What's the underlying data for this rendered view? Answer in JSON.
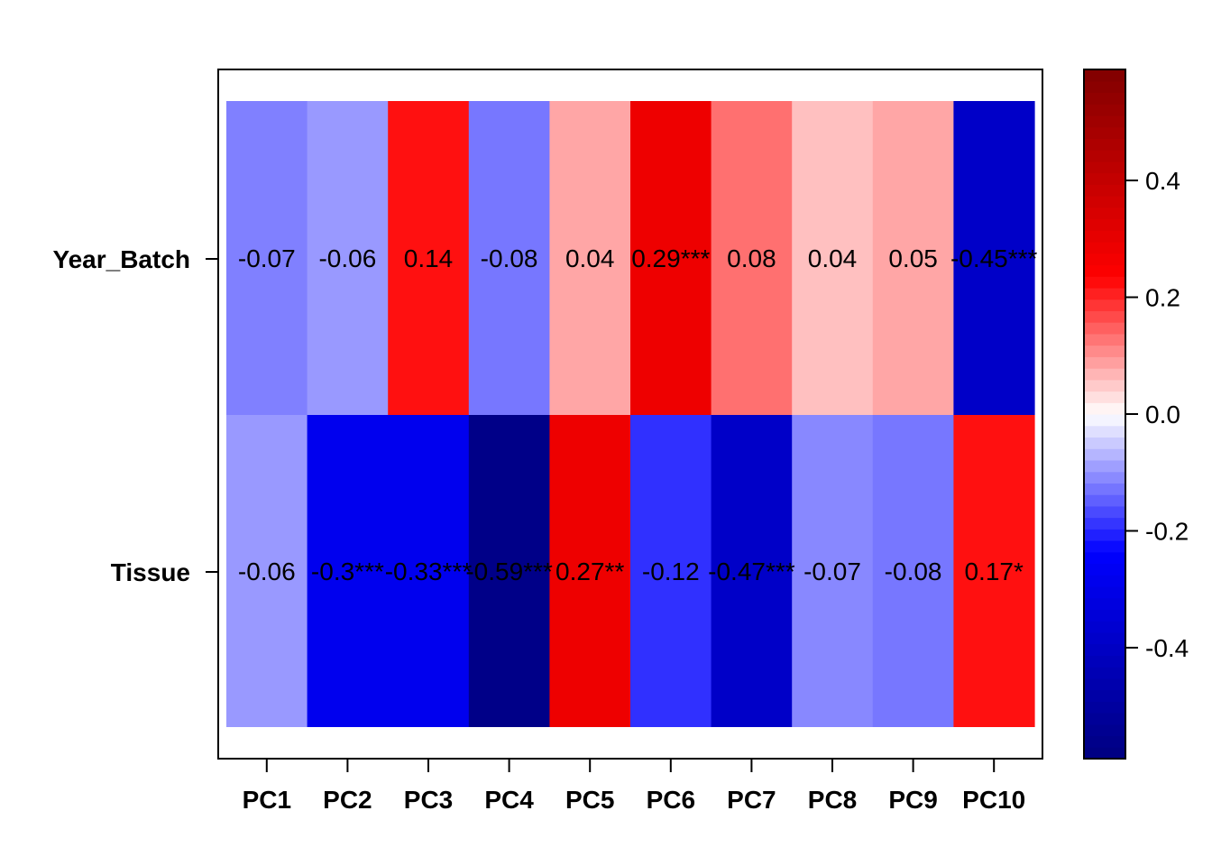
{
  "chart_data": {
    "type": "heatmap",
    "title": "",
    "rows": [
      "Year_Batch",
      "Tissue"
    ],
    "columns": [
      "PC1",
      "PC2",
      "PC3",
      "PC4",
      "PC5",
      "PC6",
      "PC7",
      "PC8",
      "PC9",
      "PC10"
    ],
    "values": [
      [
        -0.07,
        -0.06,
        0.14,
        -0.08,
        0.04,
        0.29,
        0.08,
        0.04,
        0.05,
        -0.45
      ],
      [
        -0.06,
        -0.3,
        -0.33,
        -0.59,
        0.27,
        -0.12,
        -0.47,
        -0.07,
        -0.08,
        0.17
      ]
    ],
    "cell_labels": [
      [
        "-0.07",
        "-0.06",
        "0.14",
        "-0.08",
        "0.04",
        "0.29***",
        "0.08",
        "0.04",
        "0.05",
        "-0.45***"
      ],
      [
        "-0.06",
        "-0.3***",
        "-0.33***",
        "-0.59***",
        "0.27**",
        "-0.12",
        "-0.47***",
        "-0.07",
        "-0.08",
        "0.17*"
      ]
    ],
    "cell_colors": [
      [
        "#8080ff",
        "#9999ff",
        "#ff1010",
        "#7777ff",
        "#ffa6a6",
        "#ee0000",
        "#ff7070",
        "#ffc0c0",
        "#ffa6a6",
        "#0000c8"
      ],
      [
        "#9999ff",
        "#0000ee",
        "#0000ee",
        "#000088",
        "#ee0000",
        "#3030ff",
        "#0000c8",
        "#8888ff",
        "#7777ff",
        "#ff1010"
      ]
    ],
    "colorbar": {
      "range": [
        -0.59,
        0.59
      ],
      "ticks": [
        -0.4,
        -0.2,
        0.0,
        0.2,
        0.4
      ],
      "tick_labels": [
        "-0.4",
        "-0.2",
        "0.0",
        "0.2",
        "0.4"
      ],
      "colors": {
        "low": "#00007f",
        "mid_low": "#0000ff",
        "center": "#ffffff",
        "mid_high": "#ff0000",
        "high": "#800000"
      }
    },
    "grid": false,
    "legend": "right"
  }
}
